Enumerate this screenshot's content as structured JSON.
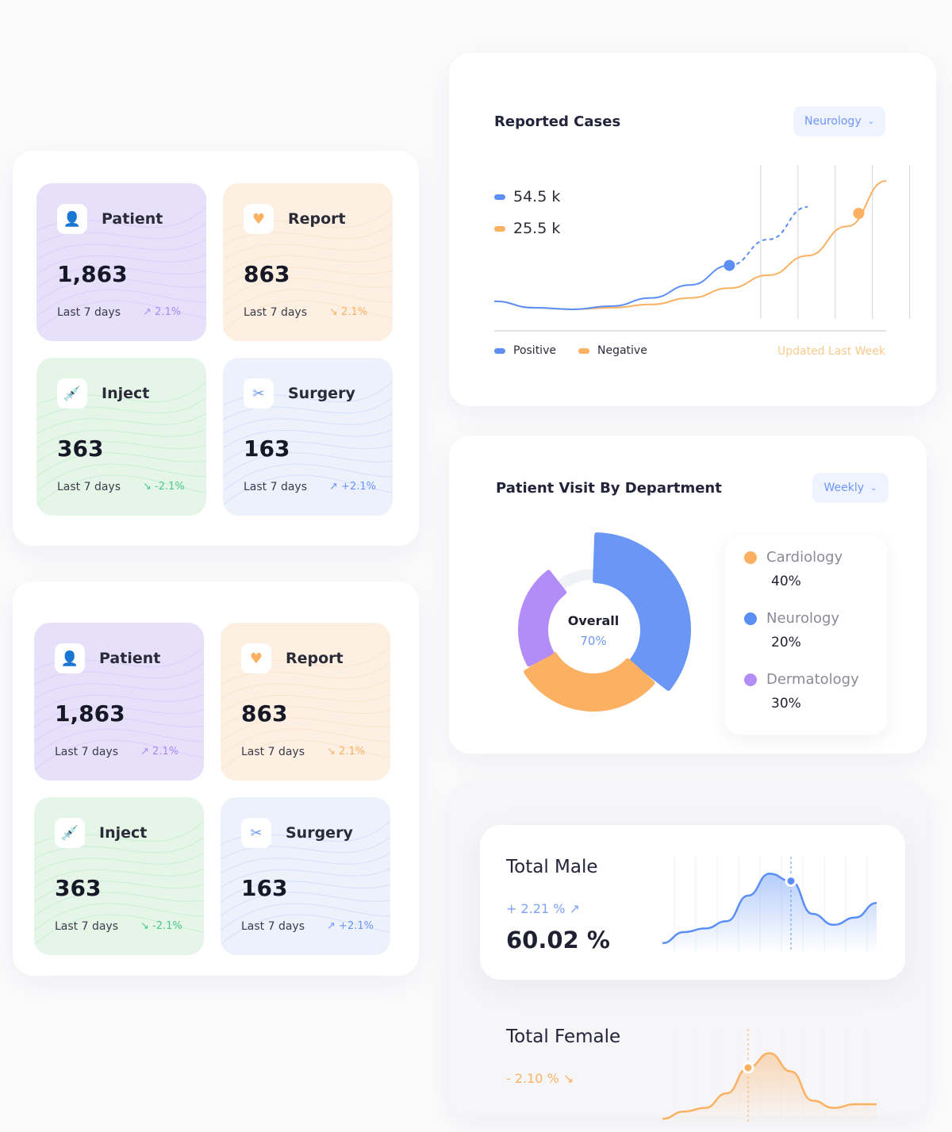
{
  "stat_groups": [
    {
      "tiles": [
        {
          "label": "Patient",
          "value": "1,863",
          "period": "Last 7 days",
          "change": "2.1%",
          "trend": "up",
          "icon": "patient-icon",
          "color": "#a98af5"
        },
        {
          "label": "Report",
          "value": "863",
          "period": "Last 7 days",
          "change": "2.1%",
          "trend": "down",
          "icon": "heart-hand-icon",
          "color": "#fbb062"
        },
        {
          "label": "Inject",
          "value": "363",
          "period": "Last 7 days",
          "change": "-2.1%",
          "trend": "down",
          "icon": "syringe-icon",
          "color": "#4cc98a"
        },
        {
          "label": "Surgery",
          "value": "163",
          "period": "Last 7 days",
          "change": "+2.1%",
          "trend": "up",
          "icon": "surgery-icon",
          "color": "#6a96f6"
        }
      ]
    },
    {
      "tiles": [
        {
          "label": "Patient",
          "value": "1,863",
          "period": "Last 7 days",
          "change": "2.1%",
          "trend": "up",
          "icon": "patient-icon",
          "color": "#a98af5"
        },
        {
          "label": "Report",
          "value": "863",
          "period": "Last 7 days",
          "change": "2.1%",
          "trend": "down",
          "icon": "heart-hand-icon",
          "color": "#fbb062"
        },
        {
          "label": "Inject",
          "value": "363",
          "period": "Last 7 days",
          "change": "-2.1%",
          "trend": "down",
          "icon": "syringe-icon",
          "color": "#4cc98a"
        },
        {
          "label": "Surgery",
          "value": "163",
          "period": "Last 7 days",
          "change": "+2.1%",
          "trend": "up",
          "icon": "surgery-icon",
          "color": "#6a96f6"
        }
      ]
    }
  ],
  "reported_cases": {
    "title": "Reported Cases",
    "filter": "Neurology",
    "positive_value": "54.5 k",
    "negative_value": "25.5 k",
    "legend": [
      "Positive",
      "Negative"
    ],
    "updated": "Updated Last Week",
    "colors": {
      "positive": "#5b8ff6",
      "negative": "#fbb062"
    }
  },
  "patient_visit": {
    "title": "Patient Visit By Department",
    "filter": "Weekly",
    "center_label": "Overall",
    "center_value": "70%",
    "departments": [
      {
        "name": "Cardiology",
        "percent": "40%",
        "color": "#fbb062"
      },
      {
        "name": "Neurology",
        "percent": "20%",
        "color": "#5b8ff6"
      },
      {
        "name": "Dermatology",
        "percent": "30%",
        "color": "#b28cf7"
      }
    ]
  },
  "gender": {
    "male": {
      "title": "Total Male",
      "change": "+ 2.21 %",
      "value": "60.02 %",
      "color": "#5b8ff6"
    },
    "female": {
      "title": "Total Female",
      "change": "- 2.10 %",
      "color": "#fbb062"
    }
  },
  "chart_data": [
    {
      "type": "line",
      "title": "Reported Cases",
      "x": [
        0,
        1,
        2,
        3,
        4,
        5,
        6,
        7,
        8,
        9,
        10
      ],
      "series": [
        {
          "name": "Positive",
          "values": [
            3,
            1,
            0.5,
            1.5,
            4,
            8,
            14,
            null,
            null,
            null,
            null
          ],
          "projected": [
            null,
            null,
            null,
            null,
            null,
            null,
            14,
            22,
            32,
            null,
            null
          ]
        },
        {
          "name": "Negative",
          "values": [
            3,
            1,
            0.5,
            1,
            2,
            4,
            7,
            11,
            17,
            26,
            40
          ]
        }
      ]
    },
    {
      "type": "pie",
      "title": "Patient Visit By Department",
      "categories": [
        "Cardiology",
        "Neurology",
        "Dermatology"
      ],
      "values": [
        40,
        20,
        30
      ]
    },
    {
      "type": "area",
      "title": "Total Male",
      "values": [
        2,
        5,
        6,
        8,
        15,
        21,
        19,
        10,
        7,
        9,
        13
      ]
    },
    {
      "type": "area",
      "title": "Total Female",
      "values": [
        1,
        3,
        4,
        8,
        15,
        19,
        14,
        6,
        4,
        5,
        5
      ]
    }
  ]
}
